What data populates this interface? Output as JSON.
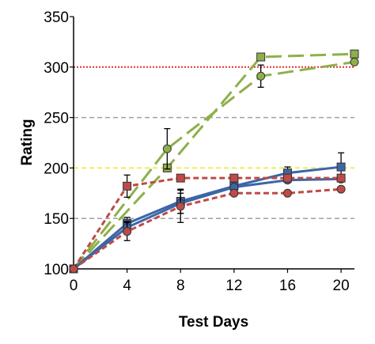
{
  "chart_data": {
    "type": "line",
    "title": "",
    "xlabel": "Test Days",
    "ylabel": "Rating",
    "xlim": [
      0,
      21
    ],
    "ylim": [
      100,
      350
    ],
    "x_ticks": [
      0,
      4,
      8,
      12,
      16,
      20
    ],
    "y_ticks": [
      100,
      150,
      200,
      250,
      300,
      350
    ],
    "reference_lines": [
      {
        "y": 300,
        "color": "#e03030",
        "style": "dotted"
      },
      {
        "y": 250,
        "color": "#a0a0a0",
        "style": "dashed"
      },
      {
        "y": 200,
        "color": "#e8e830",
        "style": "dashed"
      },
      {
        "y": 150,
        "color": "#a0a0a0",
        "style": "dashed"
      }
    ],
    "series": [
      {
        "color": "#8db04a",
        "line": "long-dash",
        "marker": "square",
        "points": [
          [
            0,
            100
          ],
          [
            7,
            200
          ],
          [
            14,
            310
          ],
          [
            21,
            313
          ]
        ],
        "errors": [
          null,
          null,
          null,
          null
        ]
      },
      {
        "color": "#8db04a",
        "line": "long-dash",
        "marker": "circle",
        "points": [
          [
            0,
            100
          ],
          [
            7,
            219
          ],
          [
            14,
            291
          ],
          [
            21,
            305
          ]
        ],
        "errors": [
          null,
          20,
          11,
          null
        ]
      },
      {
        "color": "#3c66a8",
        "line": "solid",
        "marker": "square",
        "points": [
          [
            0,
            100
          ],
          [
            4,
            145
          ],
          [
            8,
            167
          ],
          [
            12,
            182
          ],
          [
            16,
            195
          ],
          [
            20,
            201
          ]
        ],
        "errors": [
          null,
          6,
          12,
          null,
          6,
          14
        ]
      },
      {
        "color": "#3c66a8",
        "line": "solid",
        "marker": "circle",
        "points": [
          [
            0,
            100
          ],
          [
            4,
            141
          ],
          [
            8,
            165
          ],
          [
            12,
            181
          ],
          [
            16,
            188
          ],
          [
            20,
            189
          ]
        ],
        "errors": [
          null,
          6,
          10,
          null,
          null,
          null
        ]
      },
      {
        "color": "#be4b48",
        "line": "short-dash",
        "marker": "square",
        "points": [
          [
            0,
            100
          ],
          [
            4,
            182
          ],
          [
            8,
            190
          ],
          [
            12,
            190
          ],
          [
            16,
            190
          ],
          [
            20,
            190
          ]
        ],
        "errors": [
          null,
          11,
          null,
          null,
          null,
          null
        ]
      },
      {
        "color": "#be4b48",
        "line": "short-dash",
        "marker": "circle",
        "points": [
          [
            0,
            100
          ],
          [
            4,
            137
          ],
          [
            8,
            162
          ],
          [
            12,
            175
          ],
          [
            16,
            175
          ],
          [
            20,
            179
          ]
        ],
        "errors": [
          null,
          9,
          16,
          null,
          null,
          null
        ]
      }
    ]
  }
}
